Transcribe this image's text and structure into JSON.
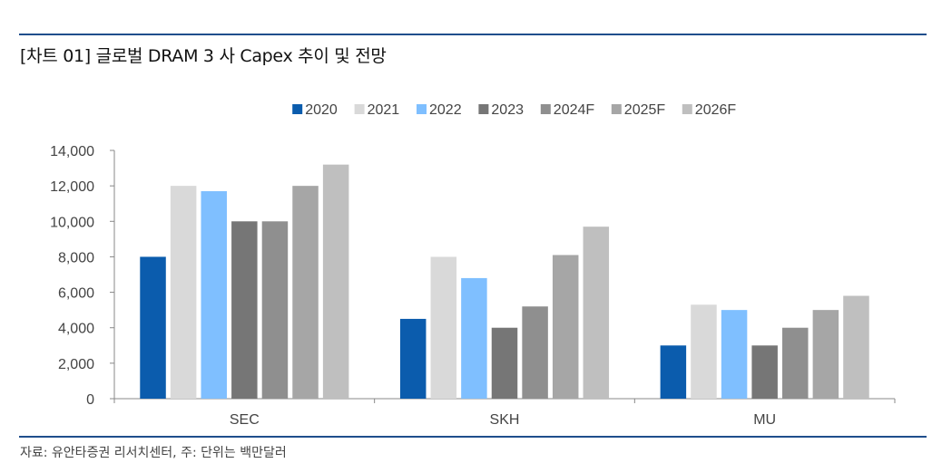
{
  "header": {
    "title": "[차트 01] 글로벌 DRAM 3 사 Capex 추이 및 전망"
  },
  "footer": {
    "source": "자료: 유안타증권 리서치센터, 주: 단위는 백만달러"
  },
  "chart_data": {
    "type": "bar",
    "title": "",
    "xlabel": "",
    "ylabel": "",
    "categories": [
      "SEC",
      "SKH",
      "MU"
    ],
    "ylim": [
      0,
      14000
    ],
    "yticks": [
      0,
      2000,
      4000,
      6000,
      8000,
      10000,
      12000,
      14000
    ],
    "ytick_labels": [
      "0",
      "2,000",
      "4,000",
      "6,000",
      "8,000",
      "10,000",
      "12,000",
      "14,000"
    ],
    "grid": false,
    "legend_position": "top",
    "series": [
      {
        "name": "2020",
        "color": "#0b5cad",
        "values": [
          8000,
          4500,
          3000
        ]
      },
      {
        "name": "2021",
        "color": "#d9d9d9",
        "values": [
          12000,
          8000,
          5300
        ]
      },
      {
        "name": "2022",
        "color": "#7fbfff",
        "values": [
          11700,
          6800,
          5000
        ]
      },
      {
        "name": "2023",
        "color": "#767676",
        "values": [
          10000,
          4000,
          3000
        ]
      },
      {
        "name": "2024F",
        "color": "#8f8f8f",
        "values": [
          10000,
          5200,
          4000
        ]
      },
      {
        "name": "2025F",
        "color": "#a6a6a6",
        "values": [
          12000,
          8100,
          5000
        ]
      },
      {
        "name": "2026F",
        "color": "#bfbfbf",
        "values": [
          13200,
          9700,
          5800
        ]
      }
    ]
  }
}
